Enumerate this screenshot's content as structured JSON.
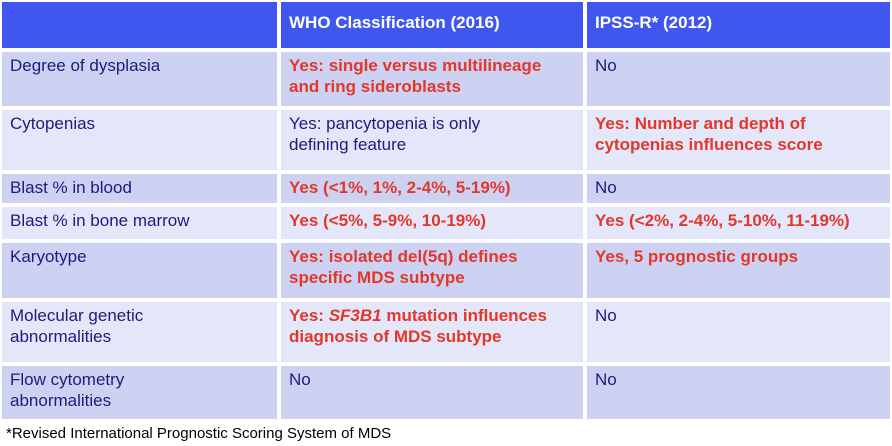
{
  "colors": {
    "header_bg": "#3F57EF",
    "row_dark": "#CDD2F3",
    "row_light": "#E4E6FA",
    "navy": "#211A7D",
    "red": "#E2382A"
  },
  "table": {
    "header": [
      "",
      "WHO Classification (2016)",
      "IPSS-R* (2012)"
    ],
    "rows": [
      {
        "feature": "Degree of dysplasia",
        "who": {
          "text": "Yes: single versus multilineage\nand ring sideroblasts",
          "color": "red",
          "bold": true
        },
        "ipssr": {
          "text": "No",
          "color": "navy",
          "bold": false
        }
      },
      {
        "feature": "Cytopenias",
        "who": {
          "text": "Yes: pancytopenia is  only\ndefining feature",
          "color": "navy",
          "bold": false
        },
        "ipssr": {
          "text": "Yes: Number and depth of\ncytopenias influences score",
          "color": "red",
          "bold": true
        }
      },
      {
        "feature": "Blast % in blood",
        "who": {
          "text": "Yes (<1%, 1%, 2-4%, 5-19%)",
          "color": "red",
          "bold": true
        },
        "ipssr": {
          "text": "No",
          "color": "navy",
          "bold": false
        }
      },
      {
        "feature": "Blast % in bone marrow",
        "who": {
          "text": "Yes (<5%, 5-9%, 10-19%)",
          "color": "red",
          "bold": true
        },
        "ipssr": {
          "text": "Yes (<2%, 2-4%, 5-10%, 11-19%)",
          "color": "red",
          "bold": true
        }
      },
      {
        "feature": "Karyotype",
        "who": {
          "text": "Yes: isolated del(5q) defines\nspecific MDS subtype",
          "color": "red",
          "bold": true
        },
        "ipssr": {
          "text": "Yes, 5 prognostic groups",
          "color": "red",
          "bold": true
        }
      },
      {
        "feature": "Molecular genetic\nabnormalities",
        "who": {
          "segments": [
            {
              "text": "Yes: ",
              "italic": false
            },
            {
              "text": "SF3B1",
              "italic": true
            },
            {
              "text": " mutation influences\ndiagnosis of MDS subtype",
              "italic": false
            }
          ],
          "color": "red",
          "bold": true
        },
        "ipssr": {
          "text": "No",
          "color": "navy",
          "bold": false
        }
      },
      {
        "feature": "Flow cytometry\nabnormalities",
        "who": {
          "text": "No",
          "color": "navy",
          "bold": false
        },
        "ipssr": {
          "text": "No",
          "color": "navy",
          "bold": false
        }
      }
    ],
    "footnote": "*Revised International Prognostic Scoring System of MDS"
  }
}
